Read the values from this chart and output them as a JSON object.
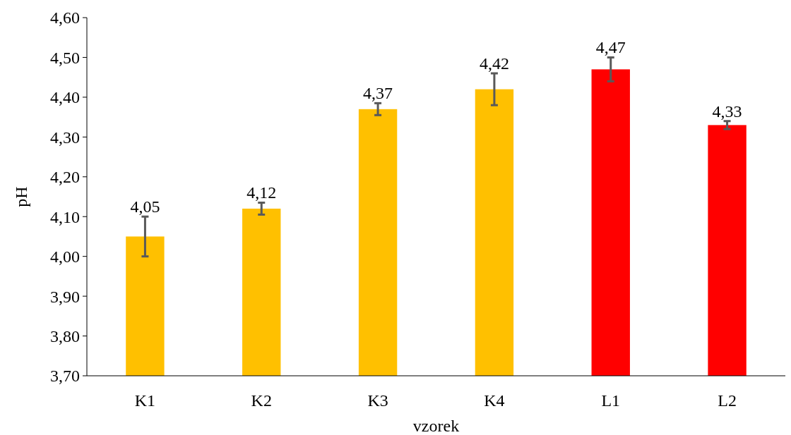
{
  "chart_data": {
    "type": "bar",
    "xlabel": "vzorek",
    "ylabel": "pH",
    "categories": [
      "K1",
      "K2",
      "K3",
      "K4",
      "L1",
      "L2"
    ],
    "values": [
      4.05,
      4.12,
      4.37,
      4.42,
      4.47,
      4.33
    ],
    "colors": [
      "#ffc000",
      "#ffc000",
      "#ffc000",
      "#ffc000",
      "#ff0000",
      "#ff0000"
    ],
    "errors": [
      0.05,
      0.015,
      0.015,
      0.04,
      0.03,
      0.01
    ],
    "value_labels": [
      "4,05",
      "4,12",
      "4,37",
      "4,42",
      "4,47",
      "4,33"
    ],
    "ylim": [
      3.7,
      4.6
    ],
    "yticks": [
      {
        "value": 3.7,
        "label": "3,70"
      },
      {
        "value": 3.8,
        "label": "3,80"
      },
      {
        "value": 3.9,
        "label": "3,90"
      },
      {
        "value": 4.0,
        "label": "4,00"
      },
      {
        "value": 4.1,
        "label": "4,10"
      },
      {
        "value": 4.2,
        "label": "4,20"
      },
      {
        "value": 4.3,
        "label": "4,30"
      },
      {
        "value": 4.4,
        "label": "4,40"
      },
      {
        "value": 4.5,
        "label": "4,50"
      },
      {
        "value": 4.6,
        "label": "4,60"
      }
    ],
    "grid": false
  }
}
